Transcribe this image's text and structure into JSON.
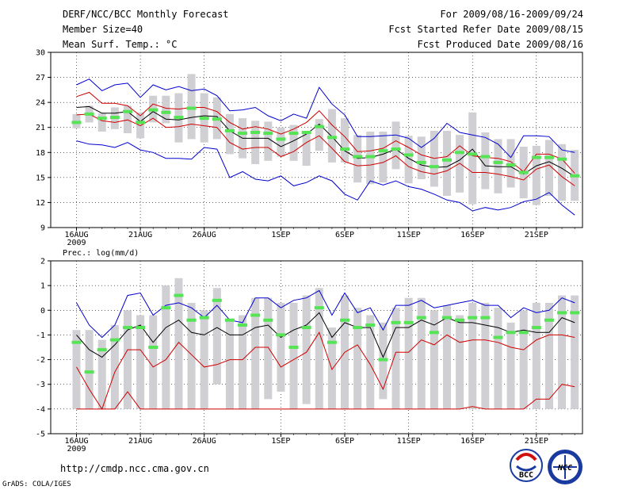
{
  "header": {
    "title": "DERF/NCC/BCC Monthly Forecast",
    "member_size": "Member Size=40",
    "variable1": "Mean Surf. Temp.: °C",
    "period": "For 2009/08/16-2009/09/24",
    "started": "Fcst Started Refer Date 2009/08/15",
    "produced": "Fcst Produced Date 2009/08/16"
  },
  "footer": {
    "url": "http://cmdp.ncc.cma.gov.cn",
    "grads": "GrADS: COLA/IGES",
    "logo1_text": "BCC",
    "logo2_text": "NCC"
  },
  "colors": {
    "box": "#d0d0d4",
    "median": "#54e454",
    "mean": "#000000",
    "inner": "#d00000",
    "outer": "#0000d0"
  },
  "chart_data": [
    {
      "type": "box",
      "title": "Mean Surf. Temp.: °C",
      "ylim": [
        9,
        30
      ],
      "yticks": [
        "9",
        "12",
        "15",
        "18",
        "21",
        "24",
        "27",
        "30"
      ],
      "xticks": [
        "16AUG",
        "21AUG",
        "26AUG",
        "1SEP",
        "6SEP",
        "11SEP",
        "16SEP",
        "21SEP"
      ],
      "xtick_days": [
        0,
        5,
        10,
        16,
        21,
        26,
        31,
        36
      ],
      "year_label": "2009",
      "days": 40,
      "box_low": [
        20.9,
        21.6,
        20.5,
        20.8,
        20.3,
        19.7,
        21.6,
        21.5,
        19.2,
        19.6,
        19.2,
        19.6,
        17.8,
        17.3,
        16.6,
        17.0,
        17.5,
        17.0,
        16.4,
        18.2,
        16.8,
        16.8,
        14.4,
        14.2,
        14.4,
        16.0,
        14.3,
        14.8,
        13.9,
        12.8,
        13.2,
        11.8,
        13.6,
        13.1,
        13.8,
        12.5,
        11.7,
        12.8,
        12.2,
        12.2
      ],
      "box_high": [
        22.6,
        23.6,
        22.7,
        23.4,
        23.6,
        22.8,
        24.8,
        24.8,
        25.1,
        27.4,
        25.1,
        24.6,
        22.6,
        22.1,
        21.8,
        21.7,
        21.0,
        21.3,
        20.4,
        22.0,
        23.2,
        22.1,
        20.1,
        20.5,
        20.5,
        21.7,
        20.0,
        19.9,
        20.6,
        20.6,
        20.1,
        22.8,
        20.4,
        19.6,
        19.6,
        18.7,
        18.8,
        19.5,
        19.0,
        18.3
      ],
      "median": [
        21.6,
        22.6,
        22.1,
        22.2,
        22.9,
        21.6,
        23.1,
        22.8,
        22.2,
        23.3,
        22.1,
        22.0,
        20.6,
        20.3,
        20.4,
        20.3,
        19.6,
        20.3,
        20.4,
        21.1,
        19.8,
        18.4,
        17.5,
        17.5,
        18.2,
        18.4,
        17.7,
        16.8,
        16.3,
        17.1,
        18.0,
        17.8,
        17.5,
        16.8,
        16.5,
        15.6,
        17.4,
        17.4,
        17.2,
        15.2
      ],
      "series": [
        {
          "name": "mean",
          "color": "#000000",
          "values": [
            23.4,
            23.5,
            22.7,
            22.7,
            22.9,
            21.7,
            22.9,
            22.0,
            21.9,
            22.2,
            22.4,
            22.3,
            20.6,
            19.7,
            19.7,
            19.7,
            18.7,
            19.4,
            20.2,
            21.4,
            19.9,
            18.2,
            17.3,
            17.4,
            17.8,
            18.4,
            17.3,
            16.5,
            16.2,
            16.3,
            17.1,
            18.4,
            16.4,
            16.3,
            16.3,
            15.4,
            16.4,
            16.9,
            16.1,
            15.1
          ]
        },
        {
          "name": "mean_plus_sd",
          "color": "#d00000",
          "values": [
            24.7,
            25.2,
            23.9,
            23.9,
            23.6,
            22.4,
            23.8,
            23.3,
            23.2,
            23.4,
            23.4,
            22.9,
            21.6,
            20.8,
            21.1,
            20.8,
            20.2,
            20.8,
            21.6,
            23.0,
            21.3,
            19.9,
            18.1,
            18.2,
            18.5,
            19.4,
            18.6,
            17.7,
            17.3,
            17.5,
            18.8,
            17.6,
            17.4,
            17.3,
            16.9,
            15.7,
            17.8,
            17.8,
            17.2,
            15.5
          ]
        },
        {
          "name": "mean_minus_sd",
          "color": "#d00000",
          "values": [
            22.5,
            22.6,
            21.8,
            21.6,
            21.9,
            21.2,
            22.1,
            21.0,
            21.1,
            21.4,
            21.2,
            21.0,
            19.2,
            18.4,
            18.6,
            18.6,
            17.5,
            18.1,
            19.2,
            20.0,
            18.5,
            16.9,
            16.4,
            16.5,
            16.8,
            17.6,
            16.3,
            15.7,
            15.4,
            15.8,
            16.7,
            15.6,
            15.6,
            15.4,
            15.1,
            14.7,
            16.0,
            16.5,
            15.1,
            14.0
          ]
        },
        {
          "name": "max",
          "color": "#0000d0",
          "values": [
            26.1,
            26.8,
            25.4,
            26.1,
            26.3,
            24.6,
            26.1,
            25.5,
            25.9,
            25.4,
            25.6,
            24.8,
            23.0,
            23.1,
            23.4,
            22.4,
            21.8,
            22.6,
            22.1,
            25.8,
            23.8,
            22.5,
            19.9,
            19.9,
            20.0,
            20.1,
            19.7,
            18.6,
            19.7,
            21.5,
            20.4,
            20.1,
            19.8,
            19.0,
            17.4,
            20.0,
            20.0,
            19.9,
            18.3,
            18.0
          ]
        },
        {
          "name": "min",
          "color": "#0000d0",
          "values": [
            19.4,
            19.0,
            18.9,
            18.6,
            19.2,
            18.3,
            18.0,
            17.3,
            17.3,
            17.2,
            18.6,
            18.4,
            15.0,
            15.7,
            14.8,
            14.6,
            15.2,
            14.0,
            14.4,
            15.2,
            14.6,
            13.0,
            12.3,
            14.6,
            14.1,
            14.6,
            13.9,
            13.6,
            13.0,
            12.3,
            12.0,
            11.0,
            11.4,
            11.1,
            11.4,
            12.1,
            12.4,
            13.2,
            11.7,
            10.5
          ]
        }
      ]
    },
    {
      "type": "box",
      "title": "Prec.: log(mm/d)",
      "ylim": [
        -5,
        2
      ],
      "yticks": [
        "-5",
        "-4",
        "-3",
        "-2",
        "-1",
        "0",
        "1",
        "2"
      ],
      "xticks": [
        "16AUG",
        "21AUG",
        "26AUG",
        "1SEP",
        "6SEP",
        "11SEP",
        "16SEP",
        "21SEP"
      ],
      "xtick_days": [
        0,
        5,
        10,
        16,
        21,
        26,
        31,
        36
      ],
      "year_label": "2009",
      "days": 40,
      "box_low": [
        -4.0,
        -4.0,
        -4.0,
        -4.0,
        -4.0,
        -4.0,
        -4.0,
        -4.0,
        -4.0,
        -4.0,
        -4.0,
        -3.0,
        -4.0,
        -4.0,
        -4.0,
        -3.6,
        -3.3,
        -4.0,
        -3.8,
        -4.0,
        -4.0,
        -4.0,
        -4.0,
        -4.0,
        -3.6,
        -4.0,
        -4.0,
        -4.0,
        -4.0,
        -4.0,
        -4.0,
        -4.0,
        -4.0,
        -4.0,
        -4.0,
        -4.0,
        -4.0,
        -4.0,
        -4.0,
        -4.0
      ],
      "box_high": [
        -0.8,
        -0.8,
        -1.2,
        -0.6,
        0.0,
        -0.2,
        -0.2,
        1.0,
        1.3,
        0.3,
        0.0,
        0.9,
        -0.4,
        -0.2,
        0.5,
        0.5,
        0.3,
        0.3,
        0.6,
        0.9,
        -0.7,
        0.6,
        0.1,
        -0.2,
        -0.5,
        0.1,
        0.5,
        0.5,
        0.0,
        0.2,
        -0.2,
        0.3,
        0.3,
        0.1,
        -0.5,
        0.0,
        0.3,
        0.3,
        0.6,
        0.6
      ],
      "median": [
        -1.3,
        -2.5,
        -1.6,
        -1.2,
        -0.7,
        -0.7,
        -1.5,
        0.1,
        0.6,
        -0.4,
        -0.3,
        0.4,
        -0.4,
        -0.6,
        -0.2,
        -0.4,
        -1.0,
        -1.5,
        -0.7,
        0.1,
        -1.3,
        -0.4,
        -0.7,
        -0.6,
        -2.0,
        -0.5,
        -0.5,
        -0.3,
        -0.9,
        -0.3,
        -0.4,
        -0.3,
        -0.3,
        -1.1,
        -0.9,
        -0.9,
        -0.7,
        -0.4,
        -0.1,
        -0.1
      ],
      "series": [
        {
          "name": "mean",
          "color": "#000000",
          "values": [
            -1.0,
            -1.6,
            -1.9,
            -1.4,
            -0.8,
            -0.6,
            -1.3,
            -0.7,
            -0.4,
            -0.9,
            -1.0,
            -0.7,
            -1.0,
            -1.0,
            -0.7,
            -0.6,
            -1.1,
            -0.8,
            -0.6,
            -0.1,
            -1.1,
            -0.5,
            -0.7,
            -0.7,
            -1.9,
            -0.7,
            -0.7,
            -0.4,
            -0.6,
            -0.3,
            -0.5,
            -0.5,
            -0.6,
            -0.7,
            -0.9,
            -0.8,
            -0.9,
            -0.9,
            -0.3,
            -0.5
          ]
        },
        {
          "name": "mean_plus_sd",
          "color": "#0000d0",
          "values": [
            0.3,
            -0.6,
            -1.1,
            -0.6,
            0.6,
            0.7,
            -0.2,
            0.2,
            0.3,
            0.1,
            -0.3,
            0.2,
            -0.4,
            -0.5,
            0.5,
            0.5,
            0.1,
            0.4,
            0.5,
            0.8,
            -0.2,
            0.7,
            -0.1,
            0.1,
            -0.8,
            0.2,
            0.2,
            0.4,
            0.1,
            0.2,
            0.3,
            0.4,
            0.2,
            0.2,
            -0.3,
            0.1,
            -0.1,
            0.0,
            0.5,
            0.3
          ]
        },
        {
          "name": "mean_minus_sd",
          "color": "#d00000",
          "values": [
            -2.3,
            -3.2,
            -4.0,
            -2.5,
            -1.6,
            -1.6,
            -2.3,
            -2.0,
            -1.3,
            -1.8,
            -2.3,
            -2.2,
            -2.0,
            -2.0,
            -1.5,
            -1.5,
            -2.3,
            -2.0,
            -1.7,
            -0.9,
            -2.4,
            -1.7,
            -1.4,
            -2.2,
            -3.2,
            -1.7,
            -1.7,
            -1.2,
            -1.4,
            -1.0,
            -1.3,
            -1.2,
            -1.2,
            -1.3,
            -1.5,
            -1.6,
            -1.2,
            -1.0,
            -1.0,
            -1.1
          ]
        },
        {
          "name": "low_envelope",
          "color": "#d00000",
          "values": [
            -4.0,
            -4.0,
            -4.0,
            -4.0,
            -3.3,
            -4.0,
            -4.0,
            -4.0,
            -4.0,
            -4.0,
            -4.0,
            -4.0,
            -4.0,
            -4.0,
            -4.0,
            -4.0,
            -4.0,
            -4.0,
            -4.0,
            -4.0,
            -4.0,
            -4.0,
            -4.0,
            -4.0,
            -4.0,
            -4.0,
            -4.0,
            -4.0,
            -4.0,
            -4.0,
            -4.0,
            -3.9,
            -4.0,
            -4.0,
            -4.0,
            -4.0,
            -3.6,
            -3.6,
            -3.0,
            -3.1
          ]
        }
      ]
    }
  ]
}
